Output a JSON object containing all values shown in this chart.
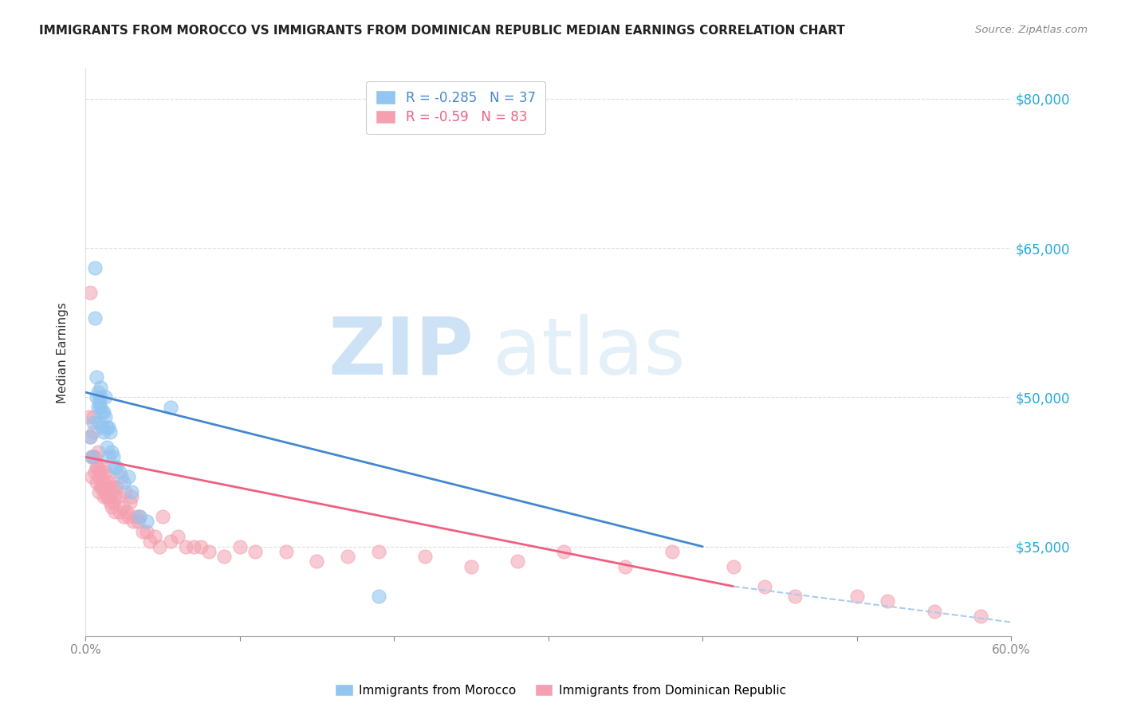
{
  "title": "IMMIGRANTS FROM MOROCCO VS IMMIGRANTS FROM DOMINICAN REPUBLIC MEDIAN EARNINGS CORRELATION CHART",
  "source": "Source: ZipAtlas.com",
  "ylabel": "Median Earnings",
  "yticks": [
    35000,
    50000,
    65000,
    80000
  ],
  "ytick_labels": [
    "$35,000",
    "$50,000",
    "$65,000",
    "$80,000"
  ],
  "xmin": 0.0,
  "xmax": 0.6,
  "ymin": 26000,
  "ymax": 83000,
  "morocco_R": -0.285,
  "morocco_N": 37,
  "dominican_R": -0.59,
  "dominican_N": 83,
  "morocco_color": "#92C5F0",
  "dominican_color": "#F4A0B0",
  "morocco_line_color": "#4488CC",
  "dominican_line_color": "#EE6080",
  "dashed_line_color": "#AACCEE",
  "morocco_scatter_x": [
    0.003,
    0.004,
    0.005,
    0.006,
    0.006,
    0.007,
    0.007,
    0.008,
    0.008,
    0.009,
    0.009,
    0.01,
    0.01,
    0.01,
    0.011,
    0.011,
    0.012,
    0.012,
    0.013,
    0.013,
    0.014,
    0.014,
    0.015,
    0.015,
    0.016,
    0.017,
    0.018,
    0.019,
    0.02,
    0.022,
    0.025,
    0.028,
    0.03,
    0.035,
    0.04,
    0.055,
    0.19
  ],
  "morocco_scatter_y": [
    46000,
    44000,
    47500,
    63000,
    58000,
    52000,
    50000,
    50500,
    49000,
    49500,
    47500,
    51000,
    50000,
    49000,
    48500,
    47000,
    48500,
    46500,
    50000,
    48000,
    47000,
    45000,
    47000,
    44000,
    46500,
    44500,
    44000,
    43000,
    43000,
    42500,
    41500,
    42000,
    40500,
    38000,
    37500,
    49000,
    30000
  ],
  "dominican_scatter_x": [
    0.002,
    0.003,
    0.003,
    0.004,
    0.004,
    0.005,
    0.005,
    0.005,
    0.006,
    0.006,
    0.007,
    0.007,
    0.008,
    0.008,
    0.009,
    0.009,
    0.01,
    0.01,
    0.011,
    0.011,
    0.012,
    0.012,
    0.013,
    0.013,
    0.014,
    0.014,
    0.015,
    0.015,
    0.016,
    0.016,
    0.017,
    0.017,
    0.018,
    0.018,
    0.019,
    0.019,
    0.02,
    0.021,
    0.022,
    0.023,
    0.024,
    0.025,
    0.026,
    0.027,
    0.028,
    0.029,
    0.03,
    0.031,
    0.033,
    0.034,
    0.035,
    0.037,
    0.04,
    0.042,
    0.045,
    0.048,
    0.05,
    0.055,
    0.06,
    0.065,
    0.07,
    0.075,
    0.08,
    0.09,
    0.1,
    0.11,
    0.13,
    0.15,
    0.17,
    0.19,
    0.22,
    0.25,
    0.28,
    0.31,
    0.35,
    0.38,
    0.42,
    0.44,
    0.46,
    0.5,
    0.52,
    0.55,
    0.58
  ],
  "dominican_scatter_y": [
    48000,
    60500,
    46000,
    44000,
    42000,
    48000,
    46500,
    44000,
    44000,
    42500,
    43000,
    41500,
    44500,
    43000,
    42000,
    40500,
    42500,
    41000,
    43000,
    41000,
    41500,
    40000,
    42500,
    40500,
    42000,
    40000,
    41500,
    40000,
    41000,
    39500,
    40500,
    39000,
    41000,
    39500,
    40000,
    38500,
    41000,
    40000,
    38500,
    42000,
    39000,
    38000,
    40500,
    38500,
    38000,
    39500,
    40000,
    37500,
    38000,
    37500,
    38000,
    36500,
    36500,
    35500,
    36000,
    35000,
    38000,
    35500,
    36000,
    35000,
    35000,
    35000,
    34500,
    34000,
    35000,
    34500,
    34500,
    33500,
    34000,
    34500,
    34000,
    33000,
    33500,
    34500,
    33000,
    34500,
    33000,
    31000,
    30000,
    30000,
    29500,
    28500,
    28000
  ]
}
